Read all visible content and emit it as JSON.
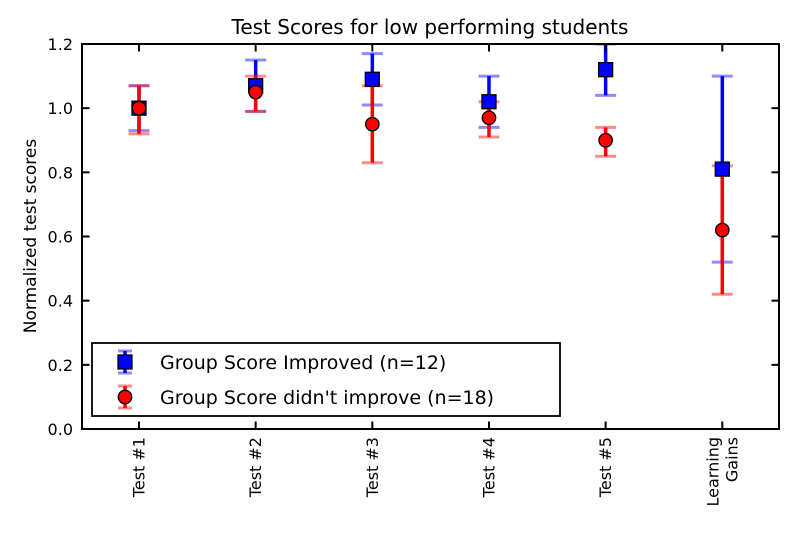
{
  "figure": {
    "background": "#ffffff",
    "text_color": "#000000",
    "spine_color": "#000000"
  },
  "chart_data": {
    "type": "scatter",
    "subtype": "errorbar",
    "title": "Test Scores for low performing students",
    "xlabel": "",
    "ylabel": "Normalized test scores",
    "categories": [
      "Test #1",
      "Test #2",
      "Test #3",
      "Test #4",
      "Test #5",
      "Learning\nGains"
    ],
    "ylim": [
      0.0,
      1.2
    ],
    "yticks": [
      0.0,
      0.2,
      0.4,
      0.6,
      0.8,
      1.0,
      1.2
    ],
    "grid": false,
    "legend_position": "lower left",
    "series": [
      {
        "name": "Group Score Improved (n=12)",
        "marker": "square",
        "color": "#0000ff",
        "cap_alpha": 0.45,
        "values": [
          1.0,
          1.07,
          1.09,
          1.02,
          1.12,
          0.81
        ],
        "err_low": [
          0.93,
          0.99,
          1.01,
          0.94,
          1.04,
          0.52
        ],
        "err_high": [
          1.07,
          1.15,
          1.17,
          1.1,
          1.2,
          1.1
        ]
      },
      {
        "name": "Group Score didn't improve (n=18)",
        "marker": "circle",
        "color": "#ff0000",
        "cap_alpha": 0.45,
        "values": [
          1.0,
          1.05,
          0.95,
          0.97,
          0.9,
          0.62
        ],
        "err_low": [
          0.92,
          0.99,
          0.83,
          0.91,
          0.85,
          0.42
        ],
        "err_high": [
          1.07,
          1.1,
          1.07,
          1.02,
          0.94,
          0.82
        ]
      }
    ]
  }
}
